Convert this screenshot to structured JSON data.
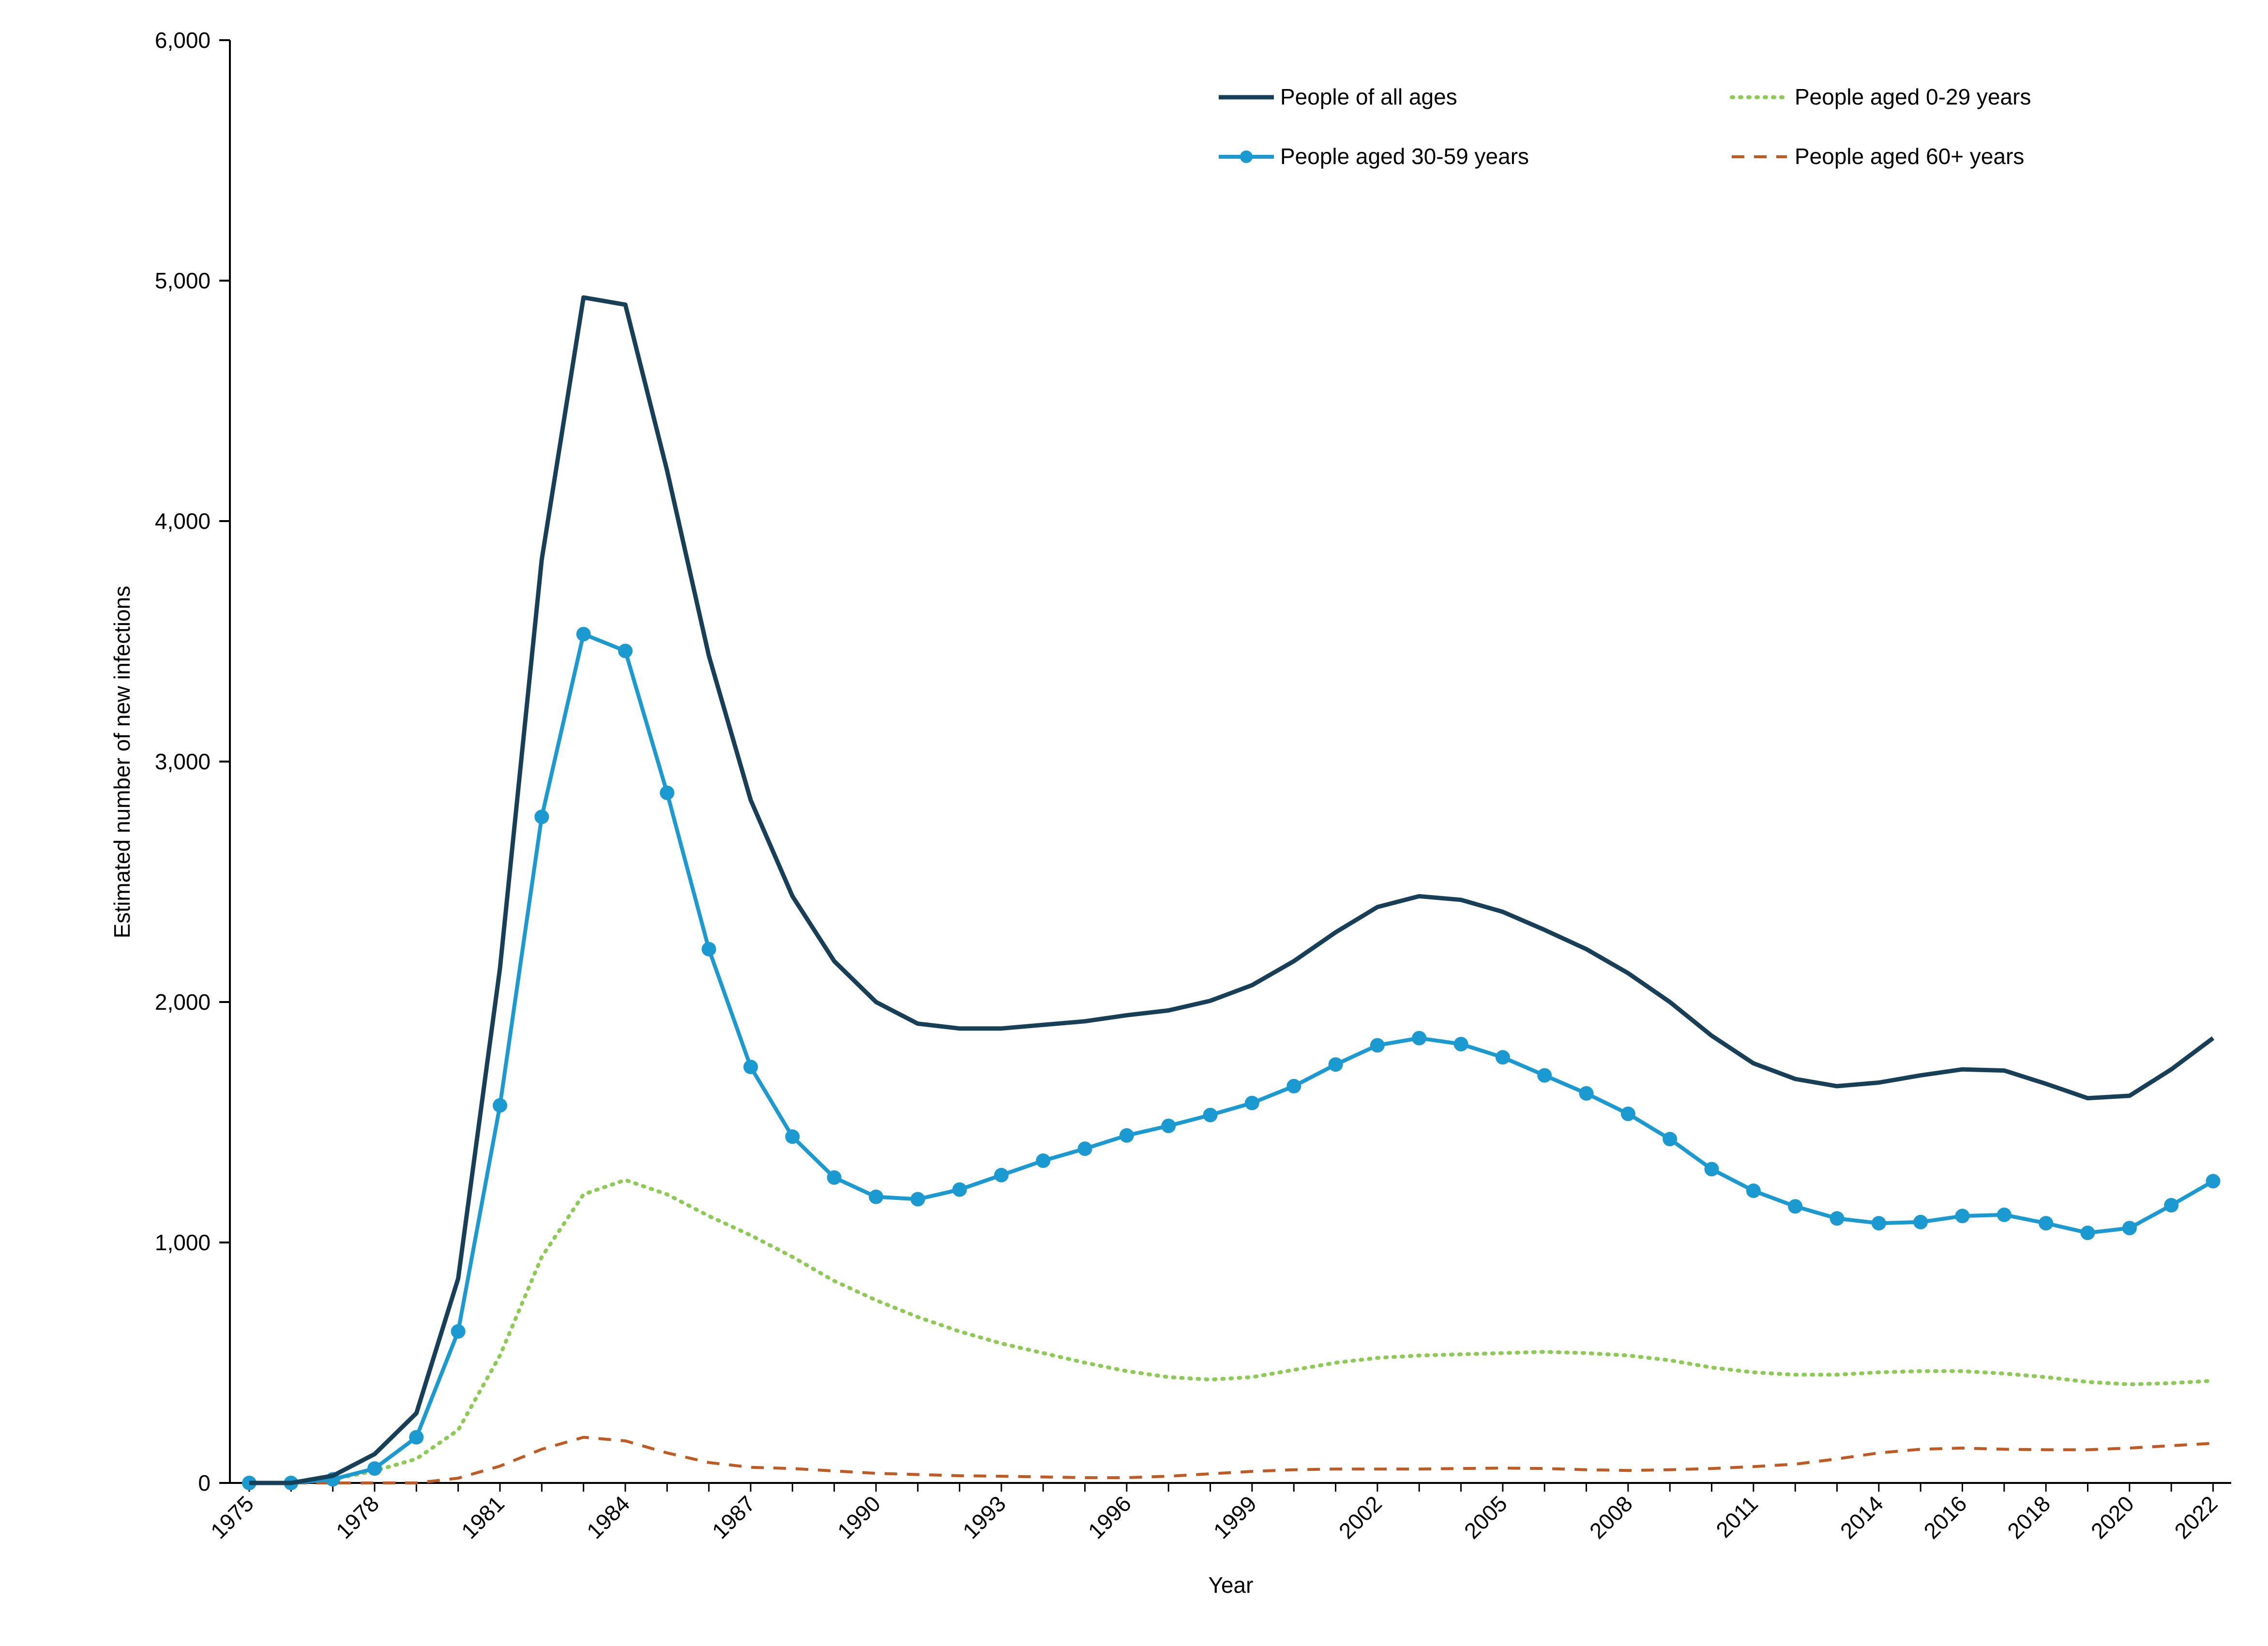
{
  "chart_data": {
    "type": "line",
    "title": "",
    "xlabel": "Year",
    "ylabel": "Estimated number of new infections",
    "ylim": [
      0,
      6000
    ],
    "yticks": [
      0,
      1000,
      2000,
      3000,
      4000,
      5000,
      6000
    ],
    "ytick_labels": [
      "0",
      "1,000",
      "2,000",
      "3,000",
      "4,000",
      "5,000",
      "6,000"
    ],
    "xtick_labels": [
      "1975",
      "1978",
      "1981",
      "1984",
      "1987",
      "1990",
      "1993",
      "1996",
      "1999",
      "2002",
      "2005",
      "2008",
      "2011",
      "2014",
      "2016",
      "2018",
      "2020",
      "2022"
    ],
    "xtick_years": [
      1975,
      1978,
      1981,
      1984,
      1987,
      1990,
      1993,
      1996,
      1999,
      2002,
      2005,
      2008,
      2011,
      2014,
      2016,
      2018,
      2020,
      2022
    ],
    "xtick_index": [
      0,
      3,
      6,
      9,
      12,
      15,
      18,
      21,
      24,
      27,
      30,
      33,
      36,
      39,
      41,
      43,
      45,
      47
    ],
    "grid": false,
    "legend_position": "top-right",
    "x": [
      1975,
      1976,
      1977,
      1978,
      1979,
      1980,
      1981,
      1982,
      1983,
      1984,
      1985,
      1986,
      1987,
      1988,
      1989,
      1990,
      1991,
      1992,
      1993,
      1994,
      1995,
      1996,
      1997,
      1998,
      1999,
      2000,
      2001,
      2002,
      2003,
      2004,
      2005,
      2006,
      2007,
      2008,
      2009,
      2010,
      2011,
      2012,
      2013,
      2014,
      2015,
      2016,
      2017,
      2018,
      2019,
      2020,
      2021,
      2022
    ],
    "series": [
      {
        "name": "People of all ages",
        "style": "solid",
        "color": "#173F58",
        "values": [
          0,
          0,
          30,
          120,
          290,
          850,
          2140,
          3840,
          4930,
          4900,
          4210,
          3440,
          2840,
          2440,
          2170,
          2000,
          1910,
          1890,
          1890,
          1905,
          1920,
          1945,
          1965,
          2005,
          2070,
          2170,
          2290,
          2395,
          2440,
          2425,
          2375,
          2300,
          2220,
          2120,
          2000,
          1860,
          1745,
          1680,
          1650,
          1665,
          1695,
          1720,
          1715,
          1660,
          1600,
          1610,
          1720,
          1850
        ]
      },
      {
        "name": "People aged 30-59 years",
        "style": "solid-marker",
        "color": "#1B9AD1",
        "values": [
          0,
          0,
          15,
          60,
          190,
          630,
          1570,
          2770,
          3530,
          3460,
          2870,
          2220,
          1730,
          1440,
          1270,
          1190,
          1180,
          1220,
          1280,
          1340,
          1390,
          1445,
          1485,
          1530,
          1580,
          1650,
          1740,
          1820,
          1850,
          1825,
          1770,
          1695,
          1620,
          1535,
          1430,
          1305,
          1215,
          1150,
          1100,
          1080,
          1085,
          1110,
          1115,
          1080,
          1040,
          1060,
          1155,
          1255
        ]
      },
      {
        "name": "People aged 0-29 years",
        "style": "dotted",
        "color": "#8CCB52",
        "values": [
          0,
          0,
          15,
          50,
          100,
          220,
          530,
          940,
          1200,
          1260,
          1200,
          1110,
          1030,
          940,
          840,
          760,
          690,
          630,
          580,
          540,
          500,
          465,
          440,
          430,
          440,
          470,
          500,
          520,
          530,
          535,
          540,
          545,
          540,
          530,
          510,
          480,
          460,
          450,
          450,
          460,
          465,
          465,
          455,
          440,
          420,
          410,
          415,
          425
        ]
      },
      {
        "name": "People aged 60+ years",
        "style": "dashed",
        "color": "#C05A22",
        "values": [
          0,
          0,
          0,
          0,
          0,
          20,
          70,
          140,
          190,
          175,
          125,
          85,
          65,
          60,
          50,
          40,
          35,
          30,
          28,
          25,
          22,
          22,
          28,
          38,
          48,
          55,
          58,
          58,
          58,
          60,
          62,
          60,
          55,
          52,
          55,
          60,
          68,
          78,
          100,
          125,
          140,
          145,
          140,
          138,
          138,
          145,
          155,
          165
        ]
      }
    ]
  }
}
